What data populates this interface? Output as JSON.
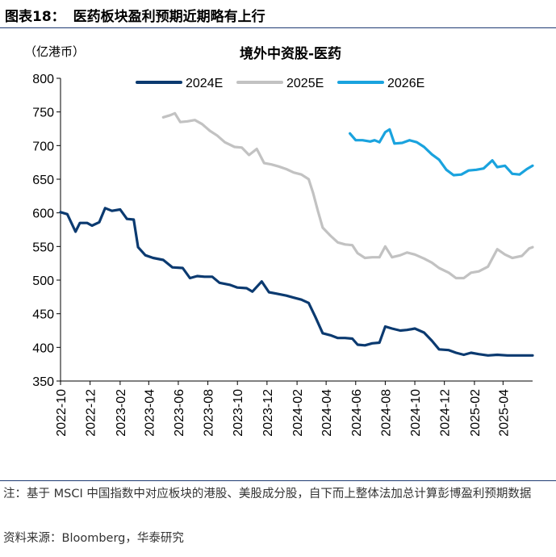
{
  "header": {
    "figure_number": "图表18：",
    "figure_title": "医药板块盈利预期近期略有上行"
  },
  "footer": {
    "note": "注：基于 MSCI 中国指数中对应板块的港股、美股成分股，自下而上整体法加总计算彭博盈利预期数据",
    "source": "资料来源：Bloomberg，华泰研究"
  },
  "chart_data": {
    "type": "line",
    "title": "境外中资股-医药",
    "unit_label": "（亿港币）",
    "ylim": [
      350,
      800
    ],
    "yticks": [
      350,
      400,
      450,
      500,
      550,
      600,
      650,
      700,
      750,
      800
    ],
    "xlim": [
      "2022-10",
      "2025-06"
    ],
    "xticks": [
      "2022-10",
      "2022-12",
      "2023-02",
      "2023-04",
      "2023-06",
      "2023-08",
      "2023-10",
      "2023-12",
      "2024-02",
      "2024-04",
      "2024-06",
      "2024-08",
      "2024-10",
      "2024-12",
      "2025-02",
      "2025-04"
    ],
    "grid": false,
    "legend_position": "top",
    "series": [
      {
        "name": "2024E",
        "color": "#0b3a70",
        "points": [
          [
            "2022-10-01",
            601
          ],
          [
            "2022-10-15",
            598
          ],
          [
            "2022-11-01",
            572
          ],
          [
            "2022-11-10",
            585
          ],
          [
            "2022-11-25",
            585
          ],
          [
            "2022-12-05",
            581
          ],
          [
            "2022-12-20",
            586
          ],
          [
            "2023-01-01",
            607
          ],
          [
            "2023-01-15",
            603
          ],
          [
            "2023-02-01",
            605
          ],
          [
            "2023-02-15",
            591
          ],
          [
            "2023-03-01",
            590
          ],
          [
            "2023-03-10",
            549
          ],
          [
            "2023-03-25",
            537
          ],
          [
            "2023-04-10",
            533
          ],
          [
            "2023-05-01",
            530
          ],
          [
            "2023-05-20",
            519
          ],
          [
            "2023-06-10",
            518
          ],
          [
            "2023-06-25",
            503
          ],
          [
            "2023-07-10",
            506
          ],
          [
            "2023-07-25",
            505
          ],
          [
            "2023-08-10",
            505
          ],
          [
            "2023-08-25",
            496
          ],
          [
            "2023-09-15",
            493
          ],
          [
            "2023-10-01",
            489
          ],
          [
            "2023-10-20",
            488
          ],
          [
            "2023-11-01",
            483
          ],
          [
            "2023-11-20",
            498
          ],
          [
            "2023-12-05",
            482
          ],
          [
            "2023-12-20",
            480
          ],
          [
            "2024-01-10",
            477
          ],
          [
            "2024-01-25",
            474
          ],
          [
            "2024-02-10",
            471
          ],
          [
            "2024-02-25",
            466
          ],
          [
            "2024-03-10",
            445
          ],
          [
            "2024-03-25",
            421
          ],
          [
            "2024-04-10",
            418
          ],
          [
            "2024-04-25",
            414
          ],
          [
            "2024-05-10",
            414
          ],
          [
            "2024-05-25",
            413
          ],
          [
            "2024-06-05",
            404
          ],
          [
            "2024-06-20",
            403
          ],
          [
            "2024-07-05",
            406
          ],
          [
            "2024-07-20",
            407
          ],
          [
            "2024-08-01",
            431
          ],
          [
            "2024-08-15",
            428
          ],
          [
            "2024-09-01",
            425
          ],
          [
            "2024-09-15",
            426
          ],
          [
            "2024-10-01",
            428
          ],
          [
            "2024-10-20",
            422
          ],
          [
            "2024-11-05",
            410
          ],
          [
            "2024-11-20",
            397
          ],
          [
            "2024-12-10",
            396
          ],
          [
            "2024-12-25",
            392
          ],
          [
            "2025-01-10",
            389
          ],
          [
            "2025-01-25",
            392
          ],
          [
            "2025-02-10",
            390
          ],
          [
            "2025-03-01",
            388
          ],
          [
            "2025-03-20",
            389
          ],
          [
            "2025-04-10",
            388
          ],
          [
            "2025-05-10",
            388
          ],
          [
            "2025-06-01",
            388
          ]
        ]
      },
      {
        "name": "2025E",
        "color": "#c2c2c2",
        "points": [
          [
            "2023-05-01",
            742
          ],
          [
            "2023-05-15",
            745
          ],
          [
            "2023-05-25",
            748
          ],
          [
            "2023-06-05",
            735
          ],
          [
            "2023-06-20",
            736
          ],
          [
            "2023-07-05",
            738
          ],
          [
            "2023-07-20",
            732
          ],
          [
            "2023-08-05",
            722
          ],
          [
            "2023-08-20",
            715
          ],
          [
            "2023-09-05",
            705
          ],
          [
            "2023-09-25",
            698
          ],
          [
            "2023-10-10",
            697
          ],
          [
            "2023-10-25",
            686
          ],
          [
            "2023-11-10",
            695
          ],
          [
            "2023-11-25",
            674
          ],
          [
            "2023-12-10",
            672
          ],
          [
            "2023-12-25",
            669
          ],
          [
            "2024-01-10",
            665
          ],
          [
            "2024-01-25",
            660
          ],
          [
            "2024-02-10",
            657
          ],
          [
            "2024-02-25",
            650
          ],
          [
            "2024-03-05",
            630
          ],
          [
            "2024-03-15",
            603
          ],
          [
            "2024-03-25",
            578
          ],
          [
            "2024-04-10",
            566
          ],
          [
            "2024-04-25",
            556
          ],
          [
            "2024-05-10",
            553
          ],
          [
            "2024-05-25",
            552
          ],
          [
            "2024-06-05",
            540
          ],
          [
            "2024-06-20",
            533
          ],
          [
            "2024-07-05",
            534
          ],
          [
            "2024-07-20",
            534
          ],
          [
            "2024-08-01",
            550
          ],
          [
            "2024-08-15",
            534
          ],
          [
            "2024-09-01",
            537
          ],
          [
            "2024-09-15",
            541
          ],
          [
            "2024-10-01",
            538
          ],
          [
            "2024-10-20",
            532
          ],
          [
            "2024-11-05",
            526
          ],
          [
            "2024-11-20",
            518
          ],
          [
            "2024-12-10",
            511
          ],
          [
            "2024-12-25",
            503
          ],
          [
            "2025-01-10",
            503
          ],
          [
            "2025-01-25",
            511
          ],
          [
            "2025-02-10",
            513
          ],
          [
            "2025-03-01",
            520
          ],
          [
            "2025-03-20",
            546
          ],
          [
            "2025-04-05",
            538
          ],
          [
            "2025-04-20",
            533
          ],
          [
            "2025-05-10",
            536
          ],
          [
            "2025-05-25",
            547
          ],
          [
            "2025-06-01",
            549
          ]
        ]
      },
      {
        "name": "2026E",
        "color": "#1aa3de",
        "points": [
          [
            "2024-05-20",
            718
          ],
          [
            "2024-06-01",
            708
          ],
          [
            "2024-06-15",
            708
          ],
          [
            "2024-07-01",
            706
          ],
          [
            "2024-07-10",
            708
          ],
          [
            "2024-07-20",
            705
          ],
          [
            "2024-08-01",
            720
          ],
          [
            "2024-08-10",
            724
          ],
          [
            "2024-08-20",
            703
          ],
          [
            "2024-09-05",
            704
          ],
          [
            "2024-09-20",
            708
          ],
          [
            "2024-10-05",
            705
          ],
          [
            "2024-10-20",
            698
          ],
          [
            "2024-11-05",
            687
          ],
          [
            "2024-11-20",
            679
          ],
          [
            "2024-12-05",
            664
          ],
          [
            "2024-12-20",
            656
          ],
          [
            "2025-01-05",
            657
          ],
          [
            "2025-01-20",
            663
          ],
          [
            "2025-02-05",
            664
          ],
          [
            "2025-02-20",
            666
          ],
          [
            "2025-03-10",
            678
          ],
          [
            "2025-03-20",
            668
          ],
          [
            "2025-04-05",
            670
          ],
          [
            "2025-04-20",
            658
          ],
          [
            "2025-05-05",
            657
          ],
          [
            "2025-05-20",
            665
          ],
          [
            "2025-06-01",
            670
          ]
        ]
      }
    ]
  }
}
